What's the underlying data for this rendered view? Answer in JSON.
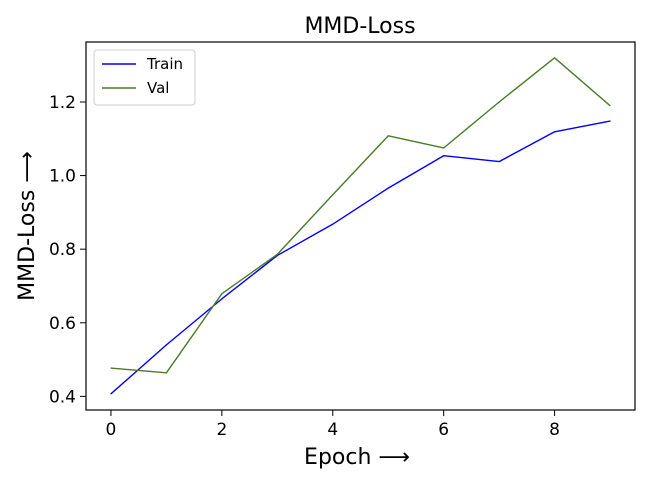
{
  "chart_data": {
    "type": "line",
    "title": "MMD-Loss",
    "xlabel": "Epoch  ⟶",
    "ylabel": "MMD-Loss  ⟶",
    "x": [
      0,
      1,
      2,
      3,
      4,
      5,
      6,
      7,
      8,
      9
    ],
    "xlim": [
      -0.45,
      9.45
    ],
    "ylim": [
      0.363,
      1.363
    ],
    "xticks": [
      0,
      2,
      4,
      6,
      8
    ],
    "yticks": [
      0.4,
      0.6,
      0.8,
      1.0,
      1.2
    ],
    "xtick_labels": [
      "0",
      "2",
      "4",
      "6",
      "8"
    ],
    "ytick_labels": [
      "0.4",
      "0.6",
      "0.8",
      "1.0",
      "1.2"
    ],
    "grid": false,
    "legend_position": "top-left",
    "series": [
      {
        "name": "Train",
        "color": "#0000ff",
        "values": [
          0.407,
          0.54,
          0.665,
          0.783,
          0.868,
          0.966,
          1.054,
          1.038,
          1.119,
          1.148
        ]
      },
      {
        "name": "Val",
        "color": "#4a7c2a",
        "values": [
          0.477,
          0.464,
          0.679,
          0.786,
          0.948,
          1.108,
          1.075,
          1.2,
          1.32,
          1.19
        ]
      }
    ]
  }
}
